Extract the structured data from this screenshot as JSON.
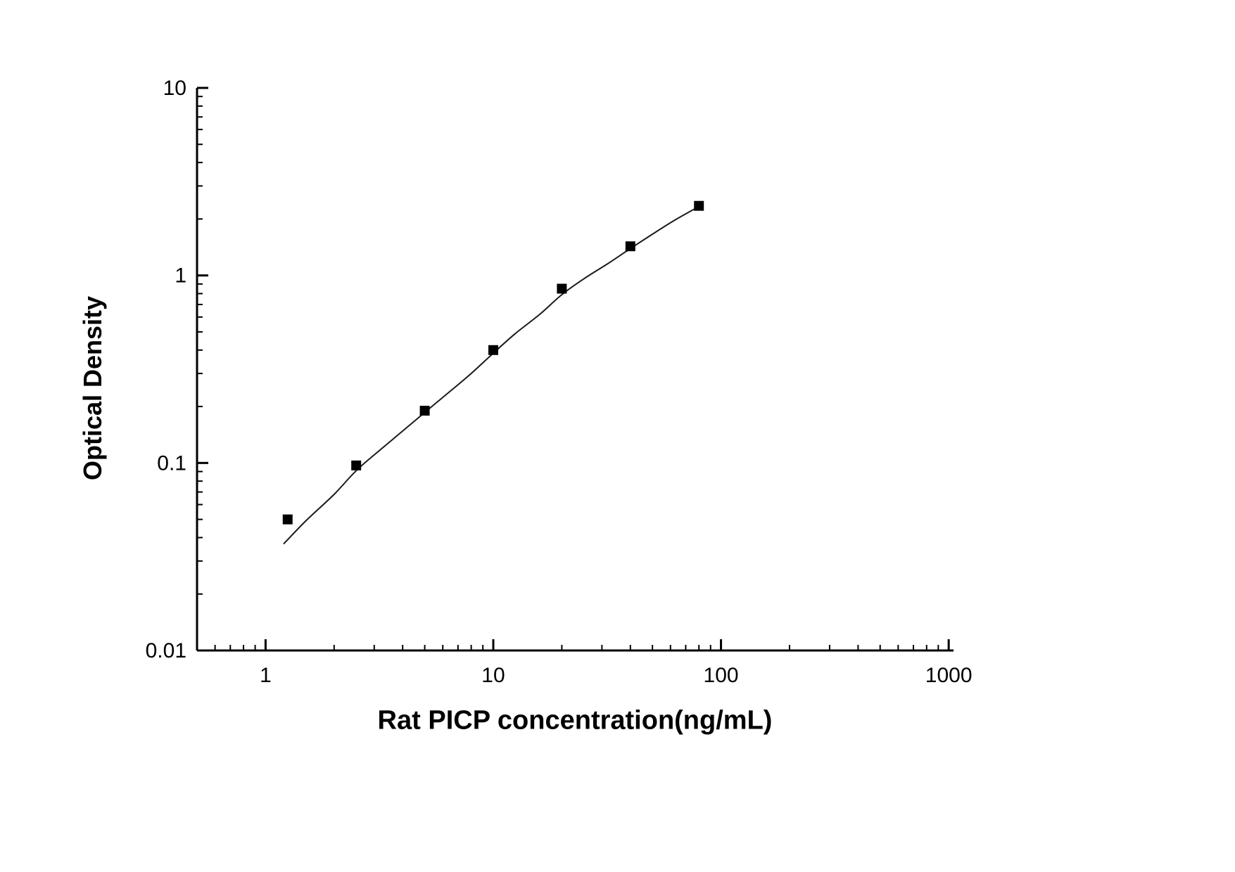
{
  "page": {
    "background_color": "#ffffff"
  },
  "chart_data": {
    "type": "scatter",
    "title": "",
    "xlabel": "Rat PICP concentration(ng/mL)",
    "ylabel": "Optical Density",
    "x_scale": "log",
    "y_scale": "log",
    "xlim": [
      0.5,
      1050
    ],
    "ylim": [
      0.01,
      10
    ],
    "x_ticks": [
      1,
      10,
      100,
      1000
    ],
    "x_tick_labels": [
      "1",
      "10",
      "100",
      "1000"
    ],
    "y_ticks": [
      0.01,
      0.1,
      1,
      10
    ],
    "y_tick_labels": [
      "0.01",
      "0.1",
      "1",
      "10"
    ],
    "grid": false,
    "legend": false,
    "axis_color": "#000000",
    "marker": {
      "shape": "square",
      "size": 14,
      "color": "#000000"
    },
    "line_color": "#1a1a1a",
    "points": [
      {
        "x": 1.25,
        "y": 0.05
      },
      {
        "x": 2.5,
        "y": 0.097
      },
      {
        "x": 5,
        "y": 0.19
      },
      {
        "x": 10,
        "y": 0.4
      },
      {
        "x": 20,
        "y": 0.85
      },
      {
        "x": 40,
        "y": 1.43
      },
      {
        "x": 80,
        "y": 2.35
      }
    ],
    "fit_curve": [
      [
        1.2,
        0.037
      ],
      [
        1.5,
        0.049
      ],
      [
        2.0,
        0.068
      ],
      [
        2.5,
        0.091
      ],
      [
        3.15,
        0.116
      ],
      [
        4.0,
        0.148
      ],
      [
        5.0,
        0.186
      ],
      [
        6.3,
        0.235
      ],
      [
        8.0,
        0.3
      ],
      [
        10.0,
        0.385
      ],
      [
        12.5,
        0.49
      ],
      [
        16.0,
        0.62
      ],
      [
        20.0,
        0.79
      ],
      [
        25.0,
        0.96
      ],
      [
        32.0,
        1.16
      ],
      [
        40.0,
        1.39
      ],
      [
        50.0,
        1.66
      ],
      [
        63.0,
        1.98
      ],
      [
        80.0,
        2.33
      ]
    ]
  }
}
